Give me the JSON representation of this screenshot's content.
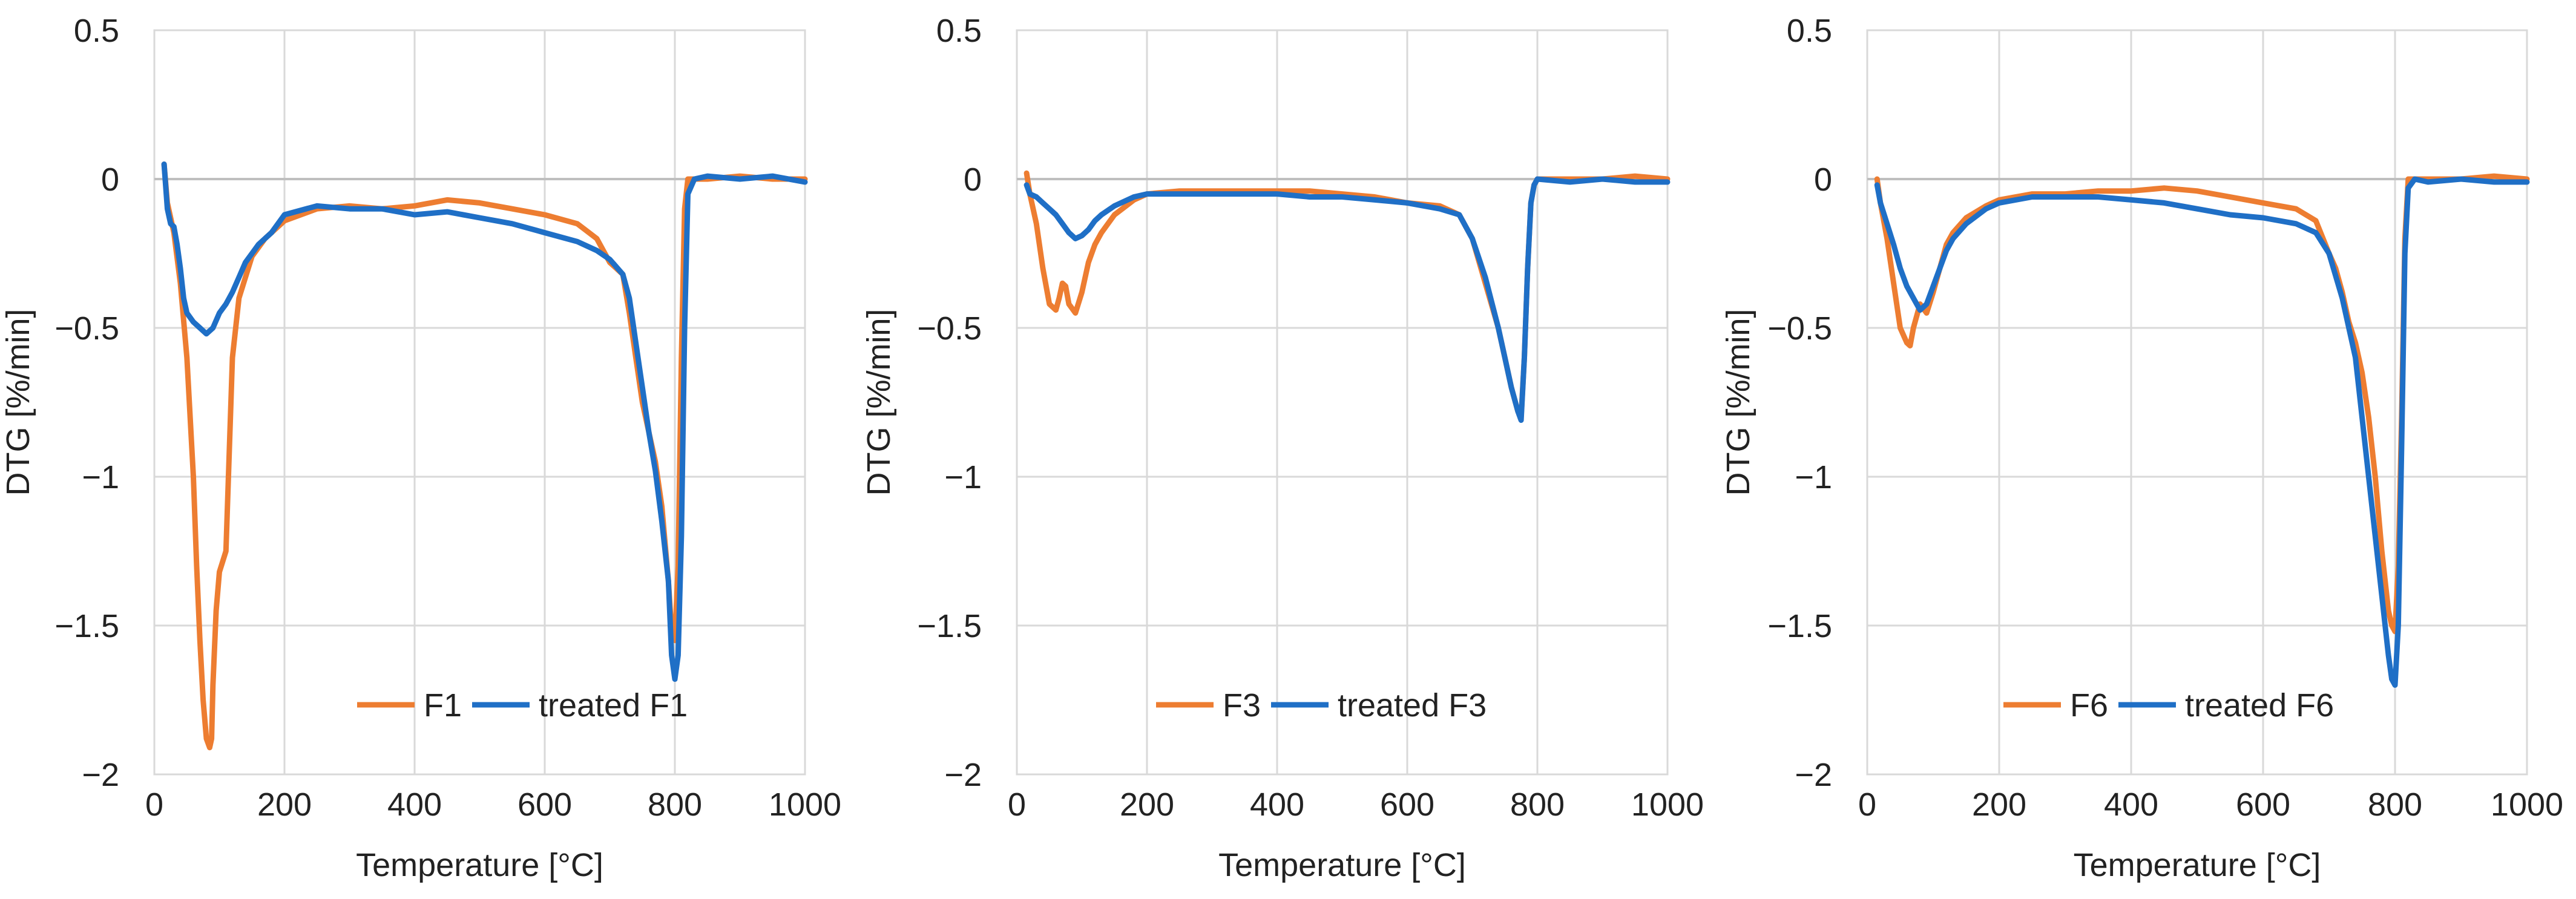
{
  "chart_data": [
    {
      "type": "line",
      "xlabel": "Temperature [°C]",
      "ylabel": "DTG [%/min]",
      "xlim": [
        0,
        1000
      ],
      "ylim": [
        -2,
        0.5
      ],
      "xticks": [
        0,
        200,
        400,
        600,
        800,
        1000
      ],
      "yticks": [
        0.5,
        0,
        -0.5,
        -1,
        -1.5,
        -2
      ],
      "ytick_labels": [
        "0.5",
        "0",
        "−0.5",
        "−1",
        "−1.5",
        "−2"
      ],
      "grid": true,
      "legend_position": "bottom-right",
      "series": [
        {
          "name": "F1",
          "color": "#ED7D31",
          "x": [
            15,
            20,
            30,
            40,
            50,
            60,
            65,
            70,
            75,
            80,
            85,
            88,
            90,
            95,
            100,
            110,
            120,
            130,
            140,
            150,
            170,
            200,
            250,
            300,
            350,
            400,
            450,
            500,
            550,
            600,
            650,
            680,
            700,
            710,
            720,
            730,
            740,
            750,
            760,
            770,
            780,
            790,
            795,
            800,
            805,
            810,
            815,
            820,
            850,
            900,
            950,
            1000
          ],
          "y": [
            0.05,
            -0.08,
            -0.18,
            -0.35,
            -0.6,
            -1.0,
            -1.3,
            -1.55,
            -1.75,
            -1.88,
            -1.91,
            -1.88,
            -1.7,
            -1.45,
            -1.32,
            -1.25,
            -0.6,
            -0.4,
            -0.33,
            -0.26,
            -0.2,
            -0.14,
            -0.1,
            -0.09,
            -0.1,
            -0.09,
            -0.07,
            -0.08,
            -0.1,
            -0.12,
            -0.15,
            -0.2,
            -0.28,
            -0.3,
            -0.32,
            -0.45,
            -0.6,
            -0.75,
            -0.85,
            -0.95,
            -1.1,
            -1.35,
            -1.52,
            -1.55,
            -1.3,
            -0.6,
            -0.1,
            0.0,
            0.0,
            0.01,
            0.0,
            0.0
          ]
        },
        {
          "name": "treated F1",
          "color": "#1F6FC6",
          "x": [
            15,
            20,
            25,
            30,
            35,
            40,
            45,
            50,
            60,
            70,
            80,
            90,
            100,
            110,
            120,
            130,
            140,
            150,
            160,
            180,
            200,
            250,
            300,
            350,
            400,
            450,
            500,
            550,
            600,
            650,
            680,
            700,
            720,
            730,
            740,
            750,
            760,
            770,
            780,
            790,
            795,
            800,
            805,
            810,
            815,
            820,
            830,
            850,
            900,
            950,
            1000
          ],
          "y": [
            0.05,
            -0.1,
            -0.15,
            -0.16,
            -0.22,
            -0.3,
            -0.4,
            -0.45,
            -0.48,
            -0.5,
            -0.52,
            -0.5,
            -0.45,
            -0.42,
            -0.38,
            -0.33,
            -0.28,
            -0.25,
            -0.22,
            -0.18,
            -0.12,
            -0.09,
            -0.1,
            -0.1,
            -0.12,
            -0.11,
            -0.13,
            -0.15,
            -0.18,
            -0.21,
            -0.24,
            -0.27,
            -0.32,
            -0.4,
            -0.55,
            -0.7,
            -0.85,
            -0.98,
            -1.15,
            -1.35,
            -1.6,
            -1.68,
            -1.6,
            -1.2,
            -0.5,
            -0.05,
            0.0,
            0.01,
            0.0,
            0.01,
            -0.01
          ]
        }
      ]
    },
    {
      "type": "line",
      "xlabel": "Temperature [°C]",
      "ylabel": "DTG [%/min]",
      "xlim": [
        0,
        1000
      ],
      "ylim": [
        -2,
        0.5
      ],
      "xticks": [
        0,
        200,
        400,
        600,
        800,
        1000
      ],
      "yticks": [
        0.5,
        0,
        -0.5,
        -1,
        -1.5,
        -2
      ],
      "ytick_labels": [
        "0.5",
        "0",
        "−0.5",
        "−1",
        "−1.5",
        "−2"
      ],
      "grid": true,
      "legend_position": "bottom-right",
      "series": [
        {
          "name": "F3",
          "color": "#ED7D31",
          "x": [
            15,
            20,
            30,
            40,
            50,
            60,
            65,
            70,
            75,
            80,
            90,
            100,
            110,
            120,
            130,
            150,
            180,
            200,
            250,
            300,
            350,
            400,
            450,
            500,
            550,
            600,
            650,
            680,
            700,
            720,
            740,
            750,
            760,
            770,
            775,
            780,
            785,
            790,
            795,
            800,
            850,
            900,
            950,
            1000
          ],
          "y": [
            0.02,
            -0.05,
            -0.15,
            -0.3,
            -0.42,
            -0.44,
            -0.4,
            -0.35,
            -0.36,
            -0.42,
            -0.45,
            -0.38,
            -0.28,
            -0.22,
            -0.18,
            -0.12,
            -0.07,
            -0.05,
            -0.04,
            -0.04,
            -0.04,
            -0.04,
            -0.04,
            -0.05,
            -0.06,
            -0.08,
            -0.09,
            -0.12,
            -0.2,
            -0.35,
            -0.5,
            -0.6,
            -0.7,
            -0.78,
            -0.8,
            -0.6,
            -0.3,
            -0.08,
            -0.02,
            0.0,
            0.0,
            0.0,
            0.01,
            0.0
          ]
        },
        {
          "name": "treated F3",
          "color": "#1F6FC6",
          "x": [
            15,
            20,
            30,
            40,
            50,
            60,
            70,
            80,
            90,
            100,
            110,
            120,
            130,
            150,
            180,
            200,
            250,
            300,
            350,
            400,
            450,
            500,
            550,
            600,
            650,
            680,
            700,
            720,
            740,
            750,
            760,
            770,
            775,
            780,
            785,
            790,
            795,
            800,
            850,
            900,
            950,
            1000
          ],
          "y": [
            -0.02,
            -0.05,
            -0.06,
            -0.08,
            -0.1,
            -0.12,
            -0.15,
            -0.18,
            -0.2,
            -0.19,
            -0.17,
            -0.14,
            -0.12,
            -0.09,
            -0.06,
            -0.05,
            -0.05,
            -0.05,
            -0.05,
            -0.05,
            -0.06,
            -0.06,
            -0.07,
            -0.08,
            -0.1,
            -0.12,
            -0.2,
            -0.33,
            -0.5,
            -0.6,
            -0.7,
            -0.78,
            -0.81,
            -0.6,
            -0.3,
            -0.08,
            -0.02,
            0.0,
            -0.01,
            0.0,
            -0.01,
            -0.01
          ]
        }
      ]
    },
    {
      "type": "line",
      "xlabel": "Temperature [°C]",
      "ylabel": "DTG [%/min]",
      "xlim": [
        0,
        1000
      ],
      "ylim": [
        -2,
        0.5
      ],
      "xticks": [
        0,
        200,
        400,
        600,
        800,
        1000
      ],
      "yticks": [
        0.5,
        0,
        -0.5,
        -1,
        -1.5,
        -2
      ],
      "ytick_labels": [
        "0.5",
        "0",
        "−0.5",
        "−1",
        "−1.5",
        "−2"
      ],
      "grid": true,
      "legend_position": "bottom-right",
      "series": [
        {
          "name": "F6",
          "color": "#ED7D31",
          "x": [
            15,
            20,
            30,
            40,
            50,
            60,
            65,
            70,
            80,
            90,
            100,
            110,
            120,
            130,
            150,
            180,
            200,
            250,
            300,
            350,
            400,
            450,
            500,
            550,
            600,
            650,
            680,
            700,
            710,
            720,
            730,
            740,
            750,
            760,
            770,
            780,
            790,
            795,
            800,
            805,
            810,
            815,
            820,
            850,
            900,
            950,
            1000
          ],
          "y": [
            0.0,
            -0.08,
            -0.2,
            -0.35,
            -0.5,
            -0.55,
            -0.56,
            -0.5,
            -0.42,
            -0.45,
            -0.38,
            -0.3,
            -0.22,
            -0.18,
            -0.13,
            -0.09,
            -0.07,
            -0.05,
            -0.05,
            -0.04,
            -0.04,
            -0.03,
            -0.04,
            -0.06,
            -0.08,
            -0.1,
            -0.14,
            -0.25,
            -0.3,
            -0.38,
            -0.48,
            -0.55,
            -0.65,
            -0.8,
            -1.0,
            -1.25,
            -1.45,
            -1.5,
            -1.52,
            -1.3,
            -0.8,
            -0.2,
            0.0,
            0.0,
            0.0,
            0.01,
            0.0
          ]
        },
        {
          "name": "treated F6",
          "color": "#1F6FC6",
          "x": [
            15,
            20,
            30,
            40,
            50,
            60,
            70,
            80,
            90,
            100,
            110,
            120,
            130,
            150,
            180,
            200,
            250,
            300,
            350,
            400,
            450,
            500,
            550,
            600,
            650,
            680,
            700,
            720,
            740,
            750,
            760,
            770,
            780,
            790,
            795,
            800,
            805,
            810,
            815,
            820,
            830,
            850,
            900,
            950,
            1000
          ],
          "y": [
            -0.02,
            -0.08,
            -0.15,
            -0.22,
            -0.3,
            -0.36,
            -0.4,
            -0.44,
            -0.42,
            -0.36,
            -0.3,
            -0.24,
            -0.2,
            -0.15,
            -0.1,
            -0.08,
            -0.06,
            -0.06,
            -0.06,
            -0.07,
            -0.08,
            -0.1,
            -0.12,
            -0.13,
            -0.15,
            -0.18,
            -0.25,
            -0.4,
            -0.6,
            -0.8,
            -1.0,
            -1.2,
            -1.4,
            -1.6,
            -1.68,
            -1.7,
            -1.5,
            -0.9,
            -0.25,
            -0.03,
            0.0,
            -0.01,
            0.0,
            -0.01,
            -0.01
          ]
        }
      ]
    }
  ]
}
